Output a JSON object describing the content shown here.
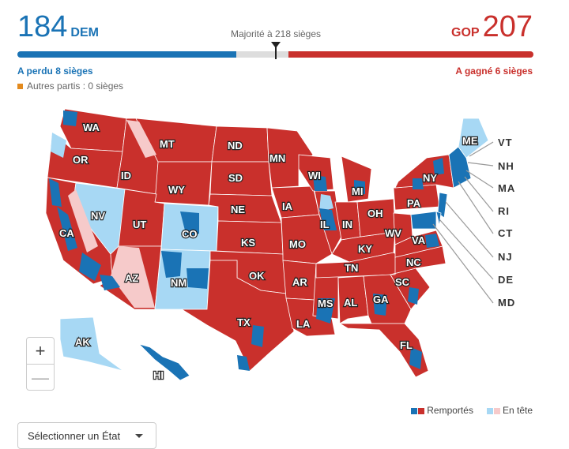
{
  "header": {
    "dem_total": "184",
    "dem_label": "DEM",
    "gop_total": "207",
    "gop_label": "GOP",
    "majority": "Majorité à 218 sièges",
    "dem_change": "A perdu 8 sièges",
    "gop_change": "A gagné 6 sièges",
    "others": "Autres partis : 0 sièges"
  },
  "colors": {
    "dem": "#1a73b5",
    "dem_leading": "#a7d8f4",
    "gop": "#c9302c",
    "gop_leading": "#f6caca",
    "others": "#e38a1e"
  },
  "map": {
    "states": [
      {
        "abbr": "WA",
        "color": "gop"
      },
      {
        "abbr": "OR",
        "color": "gop"
      },
      {
        "abbr": "CA",
        "color": "gop"
      },
      {
        "abbr": "NV",
        "color": "dem_leading"
      },
      {
        "abbr": "ID",
        "color": "gop"
      },
      {
        "abbr": "MT",
        "color": "gop"
      },
      {
        "abbr": "WY",
        "color": "gop"
      },
      {
        "abbr": "UT",
        "color": "gop"
      },
      {
        "abbr": "AZ",
        "color": "gop"
      },
      {
        "abbr": "CO",
        "color": "dem_leading"
      },
      {
        "abbr": "NM",
        "color": "dem_leading"
      },
      {
        "abbr": "ND",
        "color": "gop"
      },
      {
        "abbr": "SD",
        "color": "gop"
      },
      {
        "abbr": "NE",
        "color": "gop"
      },
      {
        "abbr": "KS",
        "color": "gop"
      },
      {
        "abbr": "OK",
        "color": "gop"
      },
      {
        "abbr": "TX",
        "color": "gop"
      },
      {
        "abbr": "MN",
        "color": "gop"
      },
      {
        "abbr": "IA",
        "color": "gop"
      },
      {
        "abbr": "MO",
        "color": "gop"
      },
      {
        "abbr": "AR",
        "color": "gop"
      },
      {
        "abbr": "LA",
        "color": "gop"
      },
      {
        "abbr": "WI",
        "color": "gop"
      },
      {
        "abbr": "IL",
        "color": "gop"
      },
      {
        "abbr": "MS",
        "color": "gop"
      },
      {
        "abbr": "MI",
        "color": "gop"
      },
      {
        "abbr": "IN",
        "color": "gop"
      },
      {
        "abbr": "KY",
        "color": "gop"
      },
      {
        "abbr": "TN",
        "color": "gop"
      },
      {
        "abbr": "AL",
        "color": "gop"
      },
      {
        "abbr": "OH",
        "color": "gop"
      },
      {
        "abbr": "GA",
        "color": "gop"
      },
      {
        "abbr": "FL",
        "color": "gop"
      },
      {
        "abbr": "SC",
        "color": "gop"
      },
      {
        "abbr": "NC",
        "color": "gop"
      },
      {
        "abbr": "WV",
        "color": "gop"
      },
      {
        "abbr": "VA",
        "color": "gop"
      },
      {
        "abbr": "PA",
        "color": "gop"
      },
      {
        "abbr": "NY",
        "color": "gop"
      },
      {
        "abbr": "ME",
        "color": "dem_leading"
      },
      {
        "abbr": "AK",
        "color": "dem_leading"
      },
      {
        "abbr": "HI",
        "color": "dem"
      }
    ],
    "northeast_labels": [
      "VT",
      "NH",
      "MA",
      "RI",
      "CT",
      "NJ",
      "DE",
      "MD"
    ]
  },
  "zoom": {
    "in": "+",
    "out": "—"
  },
  "legend": {
    "reported": "Remportés",
    "leading": "En tête"
  },
  "selector": {
    "label": "Sélectionner un État"
  }
}
